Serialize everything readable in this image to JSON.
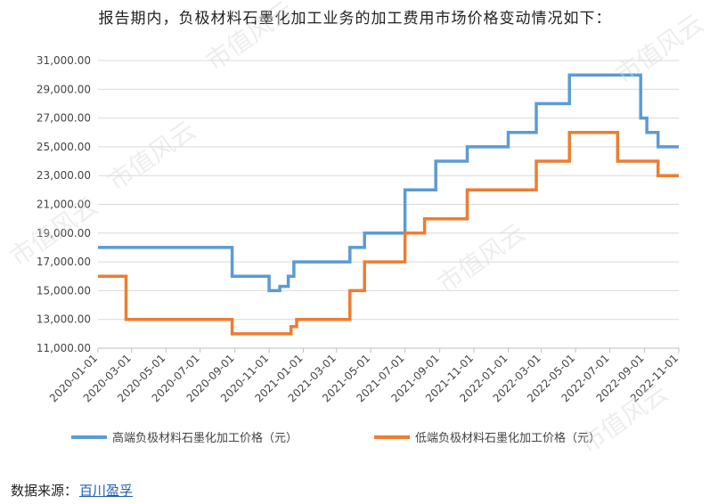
{
  "intro_text": "报告期内，负极材料石墨化加工业务的加工费用市场价格变动情况如下：",
  "source": {
    "label": "数据来源：",
    "link_text": "百川盈孚"
  },
  "watermark_text": "市值风云",
  "chart_data": {
    "type": "line",
    "title": "",
    "xlabel": "",
    "ylabel": "",
    "ylim": [
      11000,
      31000
    ],
    "y_ticks": [
      "11,000.00",
      "13,000.00",
      "15,000.00",
      "17,000.00",
      "19,000.00",
      "21,000.00",
      "23,000.00",
      "25,000.00",
      "27,000.00",
      "29,000.00",
      "31,000.00"
    ],
    "x_ticks": [
      "2020-01-01",
      "2020-03-01",
      "2020-05-01",
      "2020-07-01",
      "2020-09-01",
      "2020-11-01",
      "2021-01-01",
      "2021-03-01",
      "2021-05-01",
      "2021-07-01",
      "2021-09-01",
      "2021-11-01",
      "2022-01-01",
      "2022-03-01",
      "2022-05-01",
      "2022-07-01",
      "2022-09-01",
      "2022-11-01"
    ],
    "x_start": "2020-01-01",
    "x_end": "2022-11-01",
    "step": true,
    "legend_position": "bottom",
    "grid": "horizontal",
    "series": [
      {
        "name": "高端负极材料石墨化加工价格（元）",
        "color": "#5b9bd5",
        "points": [
          [
            "2020-01-01",
            18000
          ],
          [
            "2020-08-27",
            16000
          ],
          [
            "2020-11-01",
            15000
          ],
          [
            "2020-11-20",
            15300
          ],
          [
            "2020-12-05",
            16000
          ],
          [
            "2020-12-15",
            17000
          ],
          [
            "2021-03-25",
            18000
          ],
          [
            "2021-04-20",
            19000
          ],
          [
            "2021-07-01",
            22000
          ],
          [
            "2021-08-25",
            24000
          ],
          [
            "2021-10-20",
            25000
          ],
          [
            "2022-01-01",
            26000
          ],
          [
            "2022-02-20",
            28000
          ],
          [
            "2022-04-20",
            30000
          ],
          [
            "2022-08-25",
            27000
          ],
          [
            "2022-09-05",
            26000
          ],
          [
            "2022-09-25",
            25000
          ],
          [
            "2022-11-01",
            25000
          ]
        ]
      },
      {
        "name": "低端负极材料石墨化加工价格（元）",
        "color": "#ed7d31",
        "points": [
          [
            "2020-01-01",
            16000
          ],
          [
            "2020-02-20",
            13000
          ],
          [
            "2020-08-27",
            12000
          ],
          [
            "2020-12-10",
            12500
          ],
          [
            "2020-12-20",
            13000
          ],
          [
            "2021-03-25",
            15000
          ],
          [
            "2021-04-20",
            17000
          ],
          [
            "2021-07-01",
            19000
          ],
          [
            "2021-08-05",
            20000
          ],
          [
            "2021-10-20",
            22000
          ],
          [
            "2022-02-20",
            24000
          ],
          [
            "2022-04-20",
            26000
          ],
          [
            "2022-07-15",
            24000
          ],
          [
            "2022-09-25",
            23000
          ],
          [
            "2022-11-01",
            23000
          ]
        ]
      }
    ]
  }
}
